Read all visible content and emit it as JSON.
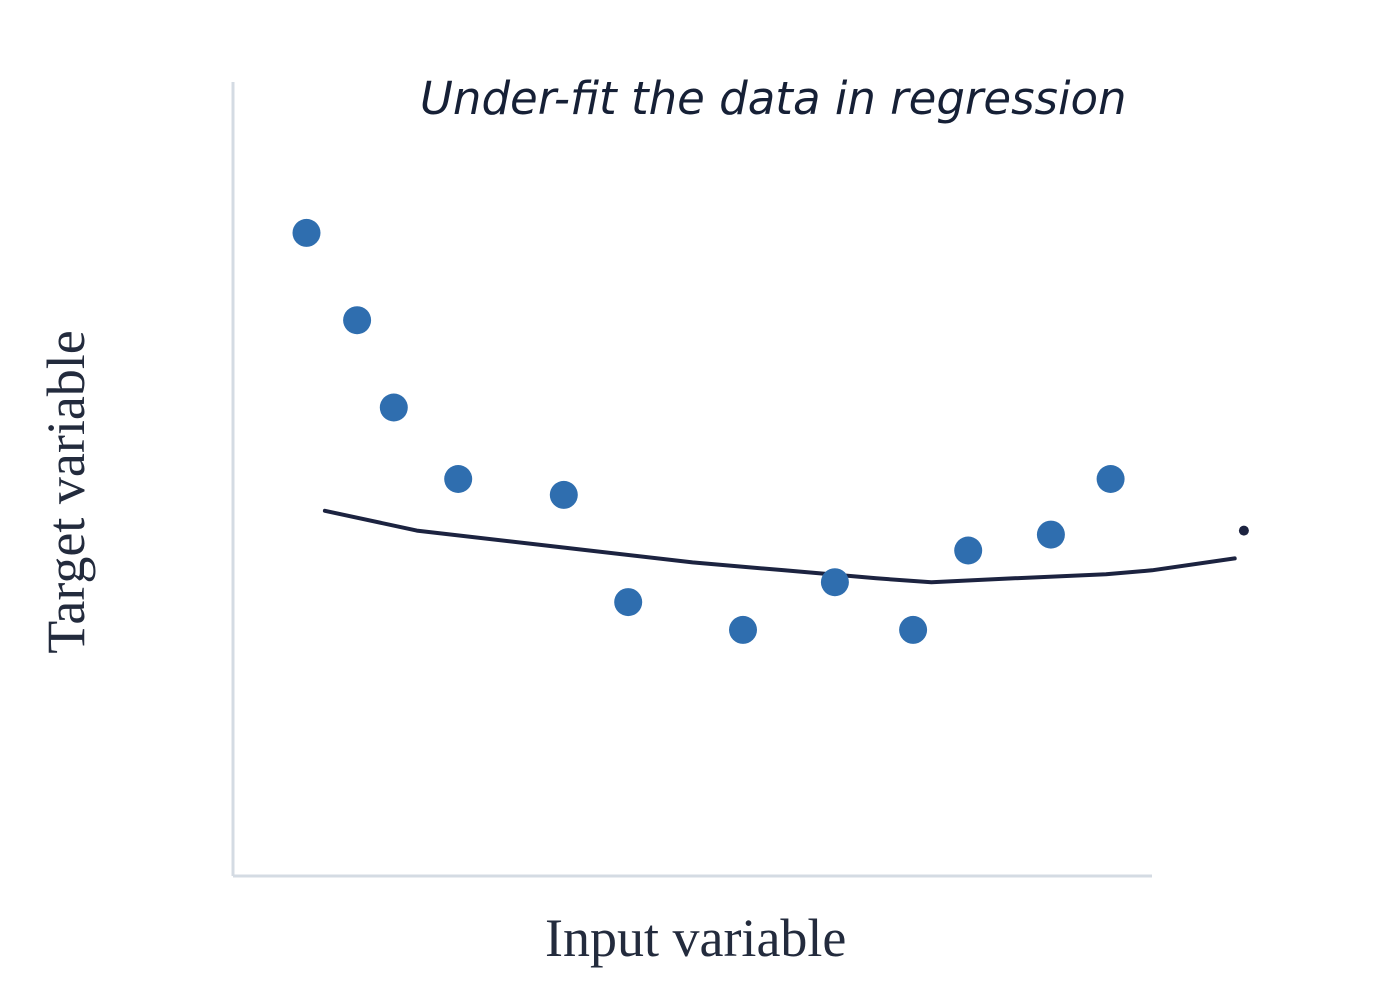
{
  "chart_data": {
    "type": "scatter",
    "title": "Under-fit the data in regression",
    "xlabel": "Input variable",
    "ylabel": "Target variable",
    "xlim": [
      0,
      100
    ],
    "ylim": [
      0,
      100
    ],
    "grid": false,
    "series": [
      {
        "kind": "points",
        "x": [
          8,
          13.5,
          17.5,
          24.5,
          36,
          43,
          55.5,
          65.5,
          74,
          80,
          89,
          95.5
        ],
        "y": [
          81,
          70,
          59,
          50,
          48,
          34.5,
          31,
          37,
          31,
          41,
          43,
          50
        ]
      },
      {
        "kind": "fit-line",
        "x": [
          10,
          20,
          35,
          50,
          60,
          70,
          76,
          85,
          95,
          100,
          109
        ],
        "y": [
          46,
          43.5,
          41.5,
          39.5,
          38.5,
          37.5,
          37,
          37.5,
          38,
          38.5,
          40
        ]
      }
    ],
    "annotations": [
      {
        "kind": "dot",
        "x": 110,
        "y": 43.5
      }
    ],
    "colors": {
      "points": "#2f6eaf",
      "fit_line": "#1c2340",
      "axis": "#d4dbe3",
      "text": "#232b3d"
    }
  }
}
